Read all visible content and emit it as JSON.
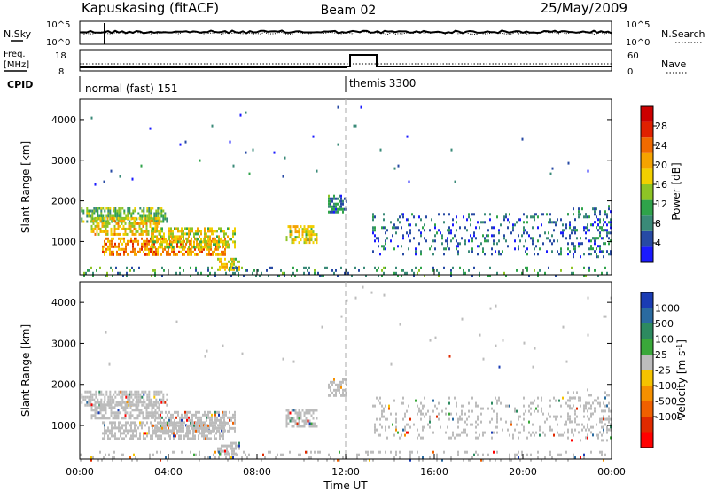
{
  "header": {
    "station": "Kapuskasing (fitACF)",
    "beam": "Beam 02",
    "date": "25/May/2009"
  },
  "left_labels": {
    "nsky": "N.Sky",
    "freq": "Freq.",
    "mhz": "[MHz]",
    "cpid": "CPID"
  },
  "right_labels": {
    "nsearch": "N.Search",
    "nave": "Nave"
  },
  "top_axes": {
    "nsky_ticks": [
      "10^5",
      "10^0"
    ],
    "nsearch_ticks": [
      "10^5",
      "10^0"
    ],
    "freq_ticks": [
      "18",
      "8"
    ],
    "nave_ticks": [
      "60",
      "0"
    ]
  },
  "cpid": [
    {
      "name": "normal (fast) 151",
      "start_hour": 0
    },
    {
      "name": "themis 3300",
      "start_hour": 12
    }
  ],
  "chart_data": [
    {
      "type": "heatmap",
      "name": "power",
      "xlabel": "",
      "ylabel": "Slant Range [km]",
      "xlim": [
        0,
        24
      ],
      "ylim": [
        180,
        4500
      ],
      "yticks": [
        1000,
        2000,
        3000,
        4000
      ],
      "colorbar": {
        "label": "Power [dB]",
        "range": [
          0,
          32
        ],
        "ticks": [
          "4",
          "8",
          "12",
          "16",
          "20",
          "24",
          "28"
        ],
        "colors": [
          "#1a1aff",
          "#274aa4",
          "#3a8a78",
          "#2fa34a",
          "#8ec425",
          "#f2d000",
          "#f5a300",
          "#f06a00",
          "#e02000",
          "#cc0000"
        ]
      },
      "regions": [
        {
          "x0": 0.05,
          "x1": 3.9,
          "y0": 1500,
          "y1": 1850,
          "v": 12
        },
        {
          "x0": 0.5,
          "x1": 3.6,
          "y0": 1150,
          "y1": 1600,
          "v": 18
        },
        {
          "x0": 1.0,
          "x1": 6.6,
          "y0": 650,
          "y1": 1100,
          "v": 22
        },
        {
          "x0": 3.2,
          "x1": 7.0,
          "y0": 850,
          "y1": 1350,
          "v": 16
        },
        {
          "x0": 6.2,
          "x1": 7.2,
          "y0": 330,
          "y1": 600,
          "v": 17
        },
        {
          "x0": 9.3,
          "x1": 10.7,
          "y0": 1000,
          "y1": 1400,
          "v": 17
        },
        {
          "x0": 11.2,
          "x1": 12.0,
          "y0": 1750,
          "y1": 2150,
          "v": 8
        },
        {
          "x0": 13.2,
          "x1": 24.0,
          "y0": 700,
          "y1": 1700,
          "v": 6
        },
        {
          "x0": 22.0,
          "x1": 24.0,
          "y0": 650,
          "y1": 1900,
          "v": 7
        },
        {
          "x0": 0.0,
          "x1": 24.0,
          "y0": 180,
          "y1": 380,
          "v": 9
        },
        {
          "x0": 0.5,
          "x1": 24.0,
          "y0": 2400,
          "y1": 4400,
          "v": 5
        }
      ]
    },
    {
      "type": "heatmap",
      "name": "velocity",
      "xlabel": "Time UT",
      "ylabel": "Slant Range [km]",
      "xlim": [
        0,
        24
      ],
      "ylim": [
        180,
        4500
      ],
      "xticks": [
        "00:00",
        "04:00",
        "08:00",
        "12:00",
        "16:00",
        "20:00",
        "00:00"
      ],
      "yticks": [
        1000,
        2000,
        3000,
        4000
      ],
      "colorbar": {
        "label": "Velocity [m s^-1]",
        "ticks": [
          "1000",
          "500",
          "100",
          "25",
          "-25",
          "-100",
          "-500",
          "-1000"
        ],
        "colors": [
          "#1a3cb4",
          "#2a6aa0",
          "#2d8a60",
          "#3aa83a",
          "#bcbcbc",
          "#f5c300",
          "#f59000",
          "#f06000",
          "#e02a00",
          "#ff0000"
        ]
      },
      "regions": [
        {
          "x0": 0.05,
          "x1": 3.9,
          "y0": 1500,
          "y1": 1850,
          "v": 0
        },
        {
          "x0": 0.5,
          "x1": 3.6,
          "y0": 1150,
          "y1": 1600,
          "v": 0
        },
        {
          "x0": 1.0,
          "x1": 6.6,
          "y0": 650,
          "y1": 1100,
          "v": 0
        },
        {
          "x0": 3.2,
          "x1": 7.0,
          "y0": 850,
          "y1": 1350,
          "v": 0
        },
        {
          "x0": 6.2,
          "x1": 7.2,
          "y0": 330,
          "y1": 600,
          "v": 0
        },
        {
          "x0": 9.3,
          "x1": 10.7,
          "y0": 1000,
          "y1": 1400,
          "v": 0
        },
        {
          "x0": 11.2,
          "x1": 12.0,
          "y0": 1750,
          "y1": 2150,
          "v": 0
        },
        {
          "x0": 13.2,
          "x1": 24.0,
          "y0": 700,
          "y1": 1700,
          "v": 0
        },
        {
          "x0": 22.0,
          "x1": 24.0,
          "y0": 650,
          "y1": 1900,
          "v": 0
        },
        {
          "x0": 0.0,
          "x1": 24.0,
          "y0": 180,
          "y1": 380,
          "v": 0
        },
        {
          "x0": 0.5,
          "x1": 24.0,
          "y0": 2400,
          "y1": 4400,
          "v": 0
        }
      ]
    }
  ]
}
